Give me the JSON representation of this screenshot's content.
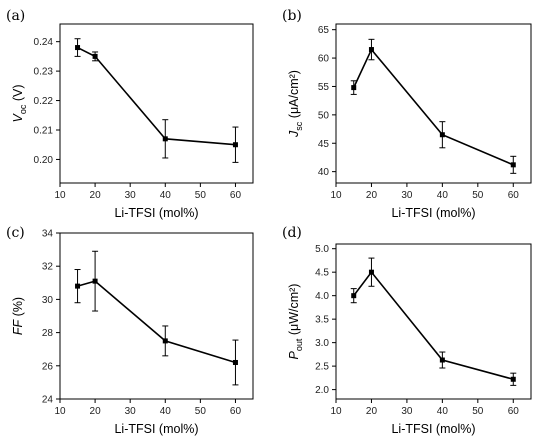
{
  "chart_data": [
    {
      "panel": "(a)",
      "type": "line",
      "xlabel": "Li-TFSI (mol%)",
      "ylabel_main": "V",
      "ylabel_sub": "oc",
      "ylabel_unit": " (V)",
      "x": [
        15,
        20,
        40,
        60
      ],
      "values": [
        0.238,
        0.235,
        0.207,
        0.205
      ],
      "errors": [
        0.003,
        0.0015,
        0.0065,
        0.006
      ],
      "xlim": [
        10,
        65
      ],
      "ylim": [
        0.192,
        0.246
      ],
      "xticks": [
        "10",
        "20",
        "30",
        "40",
        "50",
        "60"
      ],
      "xtick_values": [
        10,
        20,
        30,
        40,
        50,
        60
      ],
      "yticks": [
        "0.20",
        "0.21",
        "0.22",
        "0.23",
        "0.24"
      ],
      "ytick_values": [
        0.2,
        0.21,
        0.22,
        0.23,
        0.24
      ]
    },
    {
      "panel": "(b)",
      "type": "line",
      "xlabel": "Li-TFSI (mol%)",
      "ylabel_main": "J",
      "ylabel_sub": "sc",
      "ylabel_unit": " (μA/cm²)",
      "x": [
        15,
        20,
        40,
        60
      ],
      "values": [
        54.8,
        61.5,
        46.5,
        41.2
      ],
      "errors": [
        1.2,
        1.8,
        2.3,
        1.5
      ],
      "xlim": [
        10,
        65
      ],
      "ylim": [
        38,
        66
      ],
      "xticks": [
        "10",
        "20",
        "30",
        "40",
        "50",
        "60"
      ],
      "xtick_values": [
        10,
        20,
        30,
        40,
        50,
        60
      ],
      "yticks": [
        "40",
        "45",
        "50",
        "55",
        "60",
        "65"
      ],
      "ytick_values": [
        40,
        45,
        50,
        55,
        60,
        65
      ]
    },
    {
      "panel": "(c)",
      "type": "line",
      "xlabel": "Li-TFSI (mol%)",
      "ylabel_main": "FF",
      "ylabel_sub": "",
      "ylabel_unit": " (%)",
      "x": [
        15,
        20,
        40,
        60
      ],
      "values": [
        30.8,
        31.1,
        27.5,
        26.2
      ],
      "errors": [
        1.0,
        1.8,
        0.9,
        1.35
      ],
      "xlim": [
        10,
        65
      ],
      "ylim": [
        24,
        34
      ],
      "xticks": [
        "10",
        "20",
        "30",
        "40",
        "50",
        "60"
      ],
      "xtick_values": [
        10,
        20,
        30,
        40,
        50,
        60
      ],
      "yticks": [
        "24",
        "26",
        "28",
        "30",
        "32",
        "34"
      ],
      "ytick_values": [
        24,
        26,
        28,
        30,
        32,
        34
      ]
    },
    {
      "panel": "(d)",
      "type": "line",
      "xlabel": "Li-TFSI (mol%)",
      "ylabel_main": "P",
      "ylabel_sub": "out",
      "ylabel_unit": " (μW/cm²)",
      "x": [
        15,
        20,
        40,
        60
      ],
      "values": [
        4.0,
        4.5,
        2.63,
        2.22
      ],
      "errors": [
        0.15,
        0.3,
        0.17,
        0.13
      ],
      "xlim": [
        10,
        65
      ],
      "ylim": [
        1.8,
        5.1
      ],
      "xticks": [
        "10",
        "20",
        "30",
        "40",
        "50",
        "60"
      ],
      "xtick_values": [
        10,
        20,
        30,
        40,
        50,
        60
      ],
      "yticks": [
        "2.0",
        "2.5",
        "3.0",
        "3.5",
        "4.0",
        "4.5",
        "5.0"
      ],
      "ytick_values": [
        2.0,
        2.5,
        3.0,
        3.5,
        4.0,
        4.5,
        5.0
      ]
    }
  ]
}
